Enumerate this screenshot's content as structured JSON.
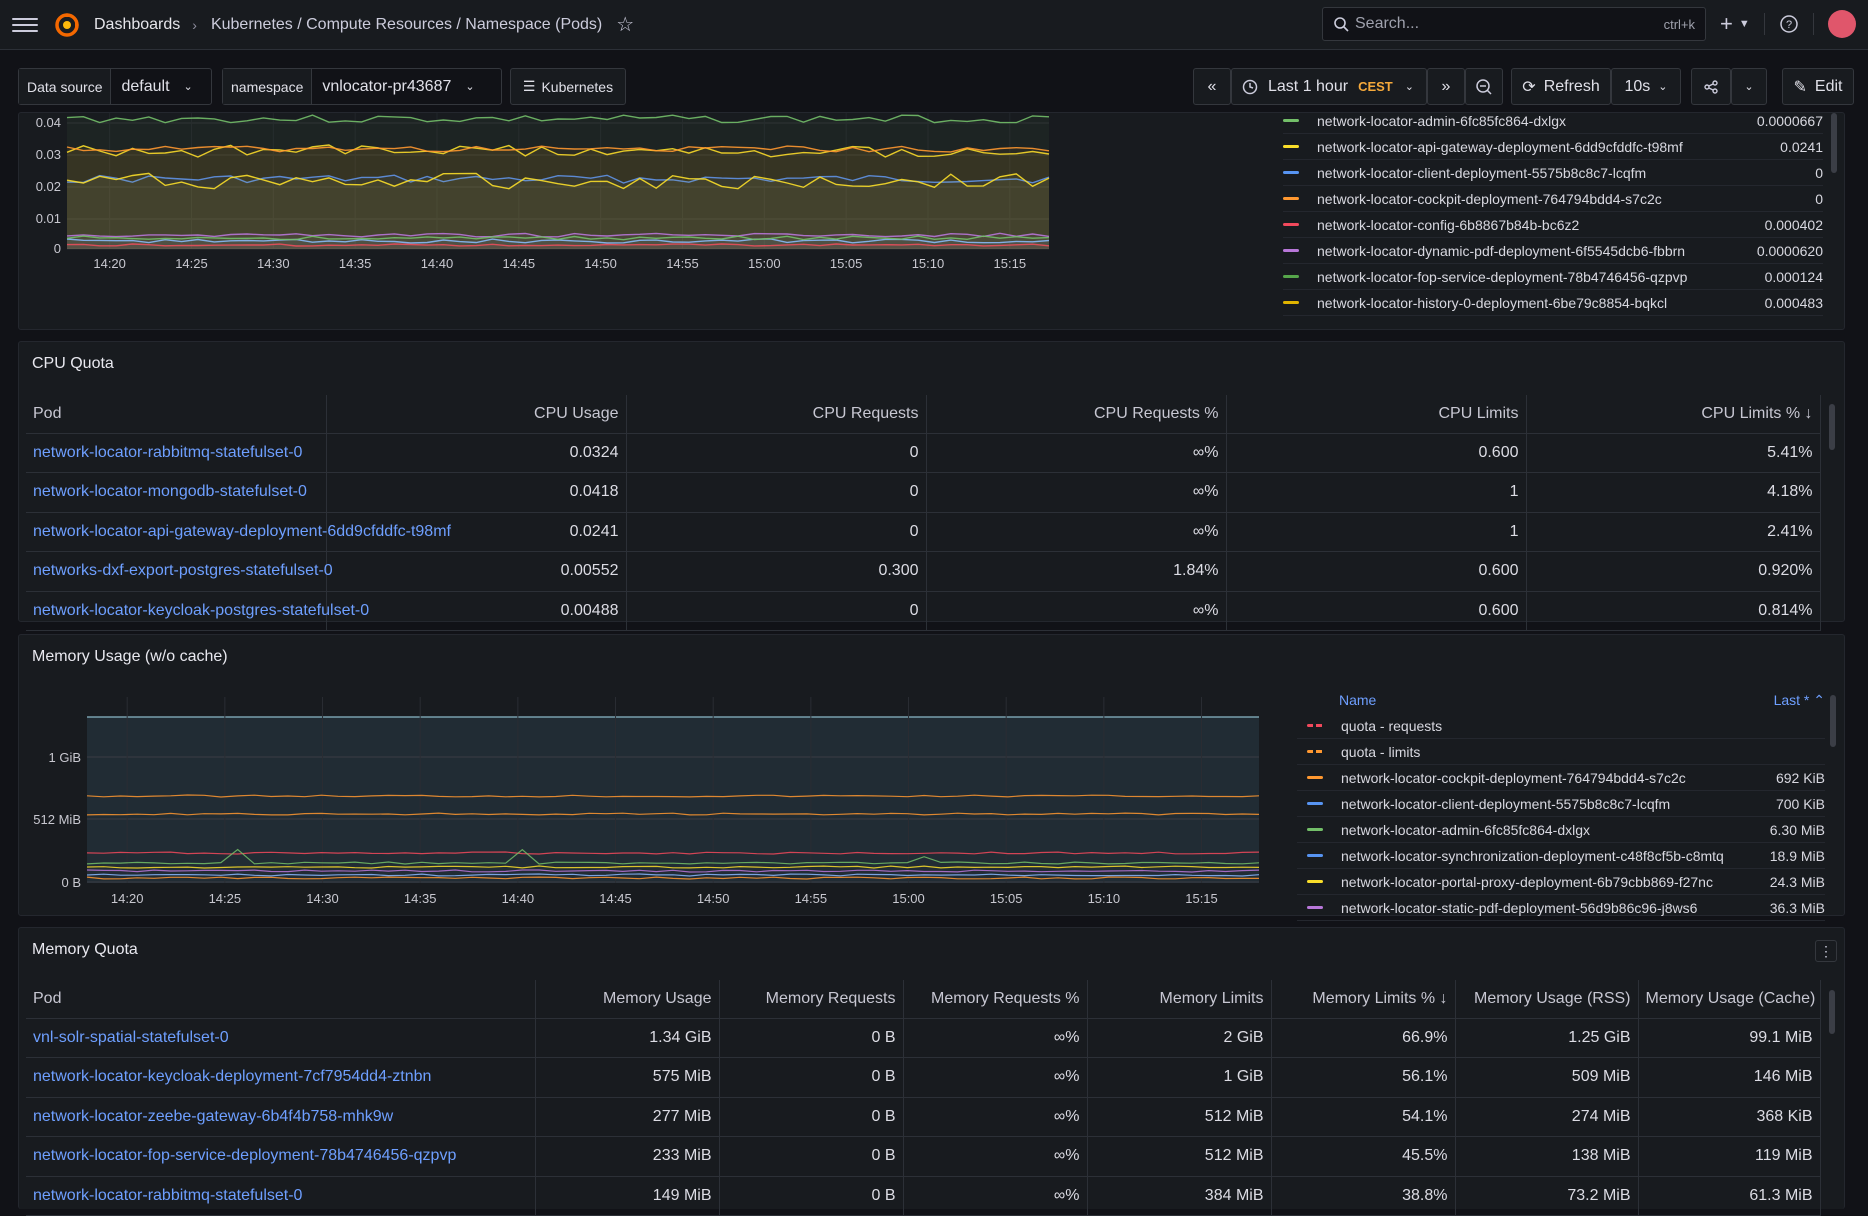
{
  "topbar": {
    "breadcrumbs": [
      "Dashboards",
      "Kubernetes / Compute Resources / Namespace (Pods)"
    ],
    "search_placeholder": "Search...",
    "search_shortcut": "ctrl+k"
  },
  "variables": {
    "datasource_label": "Data source",
    "datasource_value": "default",
    "namespace_label": "namespace",
    "namespace_value": "vnlocator-pr43687",
    "links_label": "Kubernetes"
  },
  "toolbar": {
    "time_range": "Last 1 hour",
    "timezone": "CEST",
    "refresh_label": "Refresh",
    "refresh_interval": "10s",
    "edit_label": "Edit"
  },
  "cpu_usage_panel": {
    "y_ticks": [
      "0.04",
      "0.03",
      "0.02",
      "0.01",
      "0"
    ],
    "x_ticks": [
      "14:20",
      "14:25",
      "14:30",
      "14:35",
      "14:40",
      "14:45",
      "14:50",
      "14:55",
      "15:00",
      "15:05",
      "15:10",
      "15:15"
    ],
    "legend": [
      {
        "name": "network-locator-admin-6fc85fc864-dxlgx",
        "value": "0.0000667",
        "color": "#73bf69"
      },
      {
        "name": "network-locator-api-gateway-deployment-6dd9cfddfc-t98mf",
        "value": "0.0241",
        "color": "#fade2a"
      },
      {
        "name": "network-locator-client-deployment-5575b8c8c7-lcqfm",
        "value": "0",
        "color": "#5794f2"
      },
      {
        "name": "network-locator-cockpit-deployment-764794bdd4-s7c2c",
        "value": "0",
        "color": "#ff9830"
      },
      {
        "name": "network-locator-config-6b8867b84b-bc6z2",
        "value": "0.000402",
        "color": "#f2495c"
      },
      {
        "name": "network-locator-dynamic-pdf-deployment-6f5545dcb6-fbbrn",
        "value": "0.0000620",
        "color": "#b877d9"
      },
      {
        "name": "network-locator-fop-service-deployment-78b4746456-qzpvp",
        "value": "0.000124",
        "color": "#56a64b"
      },
      {
        "name": "network-locator-history-0-deployment-6be79c8854-bqkcl",
        "value": "0.000483",
        "color": "#e0b400"
      }
    ]
  },
  "cpu_quota_panel": {
    "title": "CPU Quota",
    "columns": [
      "Pod",
      "CPU Usage",
      "CPU Requests",
      "CPU Requests %",
      "CPU Limits",
      "CPU Limits %"
    ],
    "rows": [
      [
        "network-locator-rabbitmq-statefulset-0",
        "0.0324",
        "0",
        "∞%",
        "0.600",
        "5.41%"
      ],
      [
        "network-locator-mongodb-statefulset-0",
        "0.0418",
        "0",
        "∞%",
        "1",
        "4.18%"
      ],
      [
        "network-locator-api-gateway-deployment-6dd9cfddfc-t98mf",
        "0.0241",
        "0",
        "∞%",
        "1",
        "2.41%"
      ],
      [
        "networks-dxf-export-postgres-statefulset-0",
        "0.00552",
        "0.300",
        "1.84%",
        "0.600",
        "0.920%"
      ],
      [
        "network-locator-keycloak-postgres-statefulset-0",
        "0.00488",
        "0",
        "∞%",
        "0.600",
        "0.814%"
      ]
    ]
  },
  "memory_usage_panel": {
    "title": "Memory Usage (w/o cache)",
    "y_ticks": [
      "1 GiB",
      "512 MiB",
      "0 B"
    ],
    "x_ticks": [
      "14:20",
      "14:25",
      "14:30",
      "14:35",
      "14:40",
      "14:45",
      "14:50",
      "14:55",
      "15:00",
      "15:05",
      "15:10",
      "15:15"
    ],
    "legend_header_name": "Name",
    "legend_header_value": "Last *",
    "legend": [
      {
        "name": "quota - requests",
        "value": "",
        "color": "#f2495c",
        "dashed": true
      },
      {
        "name": "quota - limits",
        "value": "",
        "color": "#ff9830",
        "dashed": true
      },
      {
        "name": "network-locator-cockpit-deployment-764794bdd4-s7c2c",
        "value": "692 KiB",
        "color": "#ff9830"
      },
      {
        "name": "network-locator-client-deployment-5575b8c8c7-lcqfm",
        "value": "700 KiB",
        "color": "#5794f2"
      },
      {
        "name": "network-locator-admin-6fc85fc864-dxlgx",
        "value": "6.30 MiB",
        "color": "#73bf69"
      },
      {
        "name": "network-locator-synchronization-deployment-c48f8cf5b-c8mtq",
        "value": "18.9 MiB",
        "color": "#5794f2"
      },
      {
        "name": "network-locator-portal-proxy-deployment-6b79cbb869-f27nc",
        "value": "24.3 MiB",
        "color": "#fade2a"
      },
      {
        "name": "network-locator-static-pdf-deployment-56d9b86c96-j8ws6",
        "value": "36.3 MiB",
        "color": "#b877d9"
      }
    ]
  },
  "memory_quota_panel": {
    "title": "Memory Quota",
    "columns": [
      "Pod",
      "Memory Usage",
      "Memory Requests",
      "Memory Requests %",
      "Memory Limits",
      "Memory Limits %",
      "Memory Usage (RSS)",
      "Memory Usage (Cache)"
    ],
    "rows": [
      [
        "vnl-solr-spatial-statefulset-0",
        "1.34 GiB",
        "0 B",
        "∞%",
        "2 GiB",
        "66.9%",
        "1.25 GiB",
        "99.1 MiB"
      ],
      [
        "network-locator-keycloak-deployment-7cf7954dd4-ztnbn",
        "575 MiB",
        "0 B",
        "∞%",
        "1 GiB",
        "56.1%",
        "509 MiB",
        "146 MiB"
      ],
      [
        "network-locator-zeebe-gateway-6b4f4b758-mhk9w",
        "277 MiB",
        "0 B",
        "∞%",
        "512 MiB",
        "54.1%",
        "274 MiB",
        "368 KiB"
      ],
      [
        "network-locator-fop-service-deployment-78b4746456-qzpvp",
        "233 MiB",
        "0 B",
        "∞%",
        "512 MiB",
        "45.5%",
        "138 MiB",
        "119 MiB"
      ],
      [
        "network-locator-rabbitmq-statefulset-0",
        "149 MiB",
        "0 B",
        "∞%",
        "384 MiB",
        "38.8%",
        "73.2 MiB",
        "61.3 MiB"
      ]
    ]
  }
}
